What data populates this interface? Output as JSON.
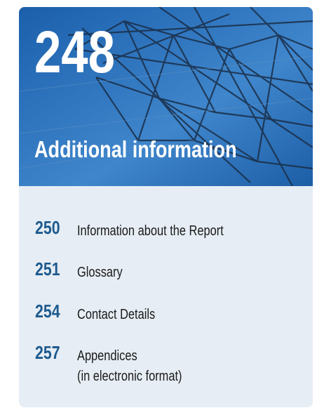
{
  "header": {
    "page": "248",
    "title": "Additional information"
  },
  "entries": [
    {
      "page": "250",
      "lines": [
        "Information about the Report"
      ]
    },
    {
      "page": "251",
      "lines": [
        "Glossary"
      ]
    },
    {
      "page": "254",
      "lines": [
        "Contact Details"
      ]
    },
    {
      "page": "257",
      "lines": [
        "Appendices",
        "(in electronic format)"
      ]
    }
  ]
}
